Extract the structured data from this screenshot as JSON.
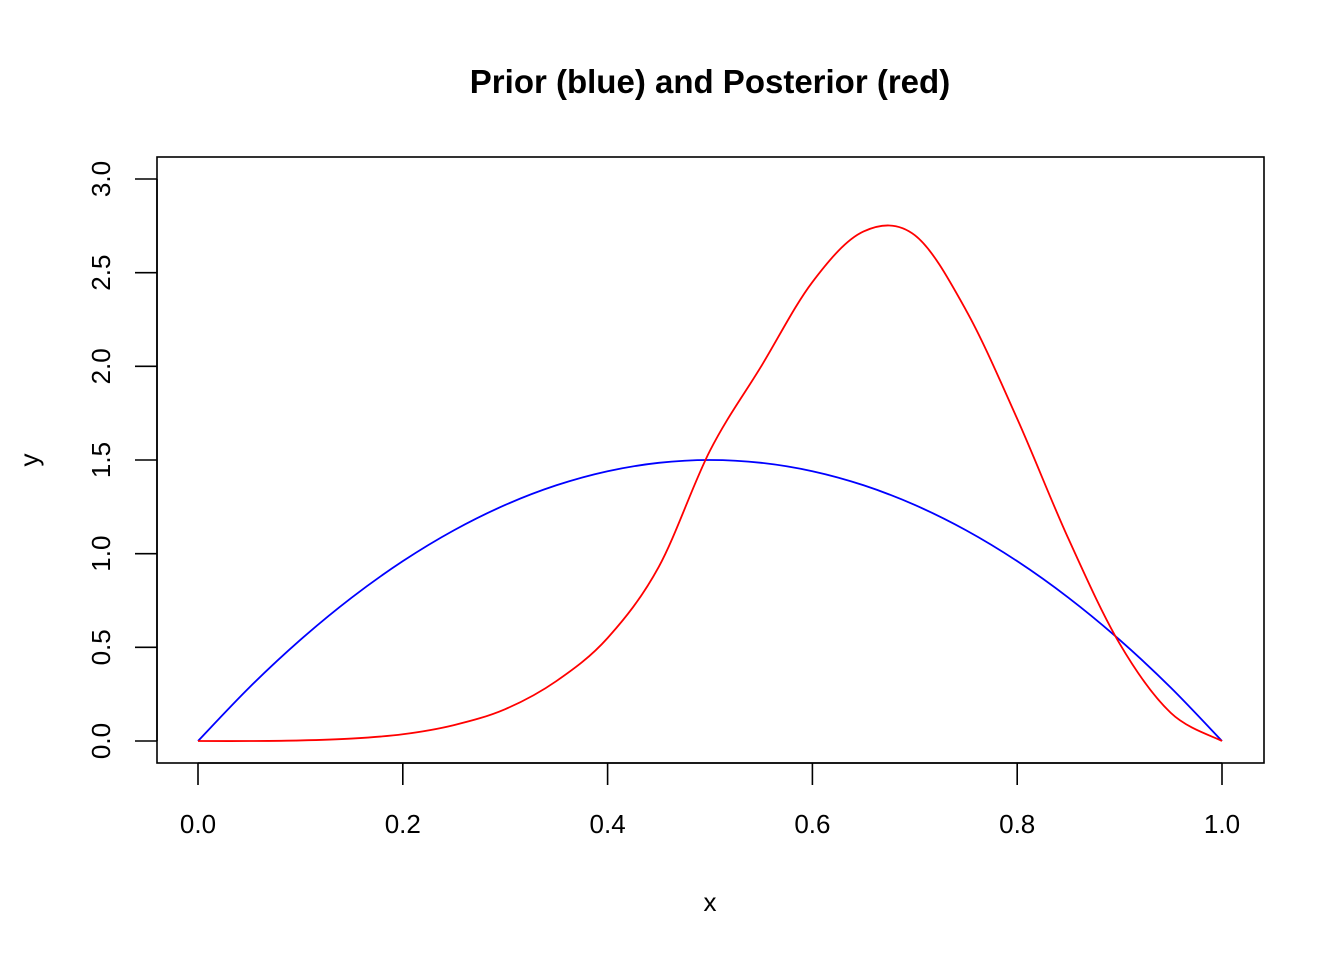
{
  "chart_data": {
    "type": "line",
    "title": "Prior (blue) and Posterior (red)",
    "xlabel": "x",
    "ylabel": "y",
    "xlim": [
      0,
      1
    ],
    "ylim": [
      0,
      3
    ],
    "x_ticks": [
      "0.0",
      "0.2",
      "0.4",
      "0.6",
      "0.8",
      "1.0"
    ],
    "y_ticks": [
      "0.0",
      "0.5",
      "1.0",
      "1.5",
      "2.0",
      "2.5",
      "3.0"
    ],
    "grid": false,
    "legend": "none",
    "series": [
      {
        "color": "#0000ff",
        "x": [
          0.0,
          0.05,
          0.1,
          0.15,
          0.2,
          0.25,
          0.3,
          0.35,
          0.4,
          0.45,
          0.5,
          0.55,
          0.6,
          0.65,
          0.7,
          0.75,
          0.8,
          0.85,
          0.9,
          0.95,
          1.0
        ],
        "y": [
          0.0,
          0.285,
          0.54,
          0.765,
          0.96,
          1.125,
          1.26,
          1.365,
          1.44,
          1.485,
          1.5,
          1.485,
          1.44,
          1.365,
          1.26,
          1.125,
          0.96,
          0.765,
          0.54,
          0.285,
          0.0
        ]
      },
      {
        "color": "#ff0000",
        "x": [
          0.0,
          0.05,
          0.1,
          0.15,
          0.2,
          0.25,
          0.3,
          0.35,
          0.4,
          0.45,
          0.5,
          0.55,
          0.6,
          0.65,
          0.7,
          0.75,
          0.8,
          0.85,
          0.9,
          0.95,
          1.0
        ],
        "y": [
          0.0,
          0.0,
          0.003,
          0.013,
          0.036,
          0.085,
          0.17,
          0.32,
          0.55,
          0.93,
          1.55,
          2.0,
          2.45,
          2.72,
          2.7,
          2.3,
          1.72,
          1.08,
          0.52,
          0.15,
          0.0
        ]
      }
    ]
  }
}
